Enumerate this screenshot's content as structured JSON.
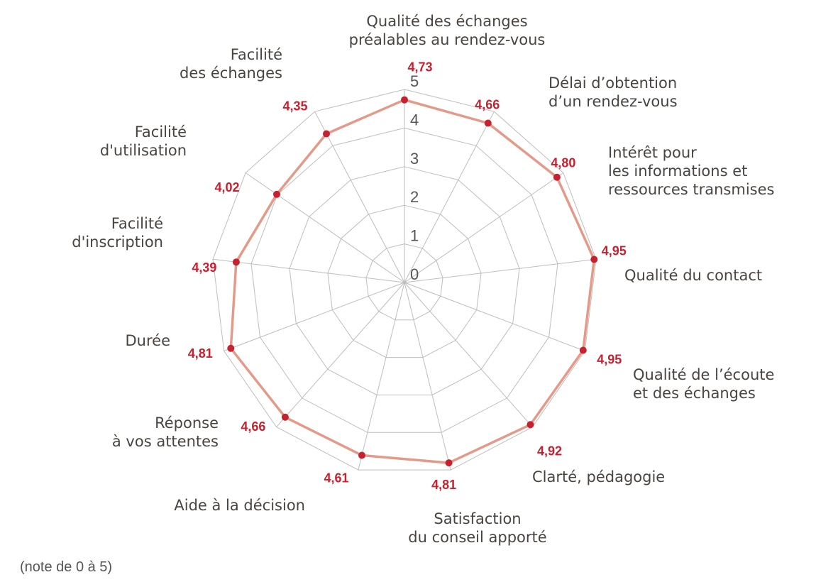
{
  "note": "(note de 0 à 5)",
  "chart_data": {
    "type": "radar",
    "rmax": 5,
    "ticks": [
      "0",
      "1",
      "2",
      "3",
      "4",
      "5"
    ],
    "axes": [
      {
        "label": [
          "Qualité des échanges",
          "préalables au rendez-vous"
        ],
        "value": 4.73,
        "display": "4,73"
      },
      {
        "label": [
          "Délai d’obtention",
          "d’un rendez-vous"
        ],
        "value": 4.66,
        "display": "4,66"
      },
      {
        "label": [
          "Intérêt pour",
          "les informations et",
          "ressources transmises"
        ],
        "value": 4.8,
        "display": "4,80"
      },
      {
        "label": [
          "Qualité du contact"
        ],
        "value": 4.95,
        "display": "4,95"
      },
      {
        "label": [
          "Qualité de l’écoute",
          "et des échanges"
        ],
        "value": 4.95,
        "display": "4,95"
      },
      {
        "label": [
          "Clarté, pédagogie"
        ],
        "value": 4.92,
        "display": "4,92"
      },
      {
        "label": [
          "Satisfaction",
          "du conseil apporté"
        ],
        "value": 4.81,
        "display": "4,81"
      },
      {
        "label": [
          "Aide à la décision"
        ],
        "value": 4.61,
        "display": "4,61"
      },
      {
        "label": [
          "Réponse",
          "à vos attentes"
        ],
        "value": 4.66,
        "display": "4,66"
      },
      {
        "label": [
          "Durée"
        ],
        "value": 4.81,
        "display": "4,81"
      },
      {
        "label": [
          "Facilité",
          "d'inscription"
        ],
        "value": 4.39,
        "display": "4,39"
      },
      {
        "label": [
          "Facilité",
          "d'utilisation"
        ],
        "value": 4.02,
        "display": "4,02"
      },
      {
        "label": [
          "Facilité",
          "des échanges"
        ],
        "value": 4.35,
        "display": "4,35"
      }
    ]
  }
}
